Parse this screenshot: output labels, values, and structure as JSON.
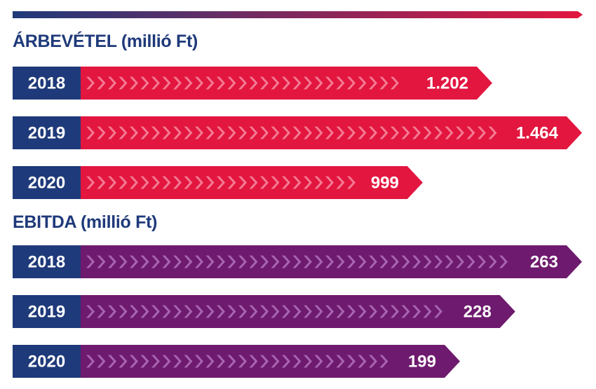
{
  "colors": {
    "navy": "#1f3a7a",
    "revenue": "#e2163f",
    "revenue_chevron": "#f47a92",
    "ebitda": "#6e1a6e",
    "ebitda_chevron": "#a865b0",
    "gradient_start": "#1f3a7a",
    "gradient_end": "#e2163f"
  },
  "chart_data": [
    {
      "type": "bar",
      "orientation": "horizontal",
      "title": "ÁRBEVÉTEL (millió Ft)",
      "categories": [
        "2018",
        "2019",
        "2020"
      ],
      "values": [
        1202,
        1464,
        999
      ],
      "value_labels": [
        "1.202",
        "1.464",
        "999"
      ],
      "xlim": [
        0,
        1464
      ],
      "grid": false
    },
    {
      "type": "bar",
      "orientation": "horizontal",
      "title": "EBITDA (millió Ft)",
      "categories": [
        "2018",
        "2019",
        "2020"
      ],
      "values": [
        263,
        228,
        199
      ],
      "value_labels": [
        "263",
        "228",
        "199"
      ],
      "xlim": [
        0,
        263
      ],
      "grid": false
    }
  ]
}
